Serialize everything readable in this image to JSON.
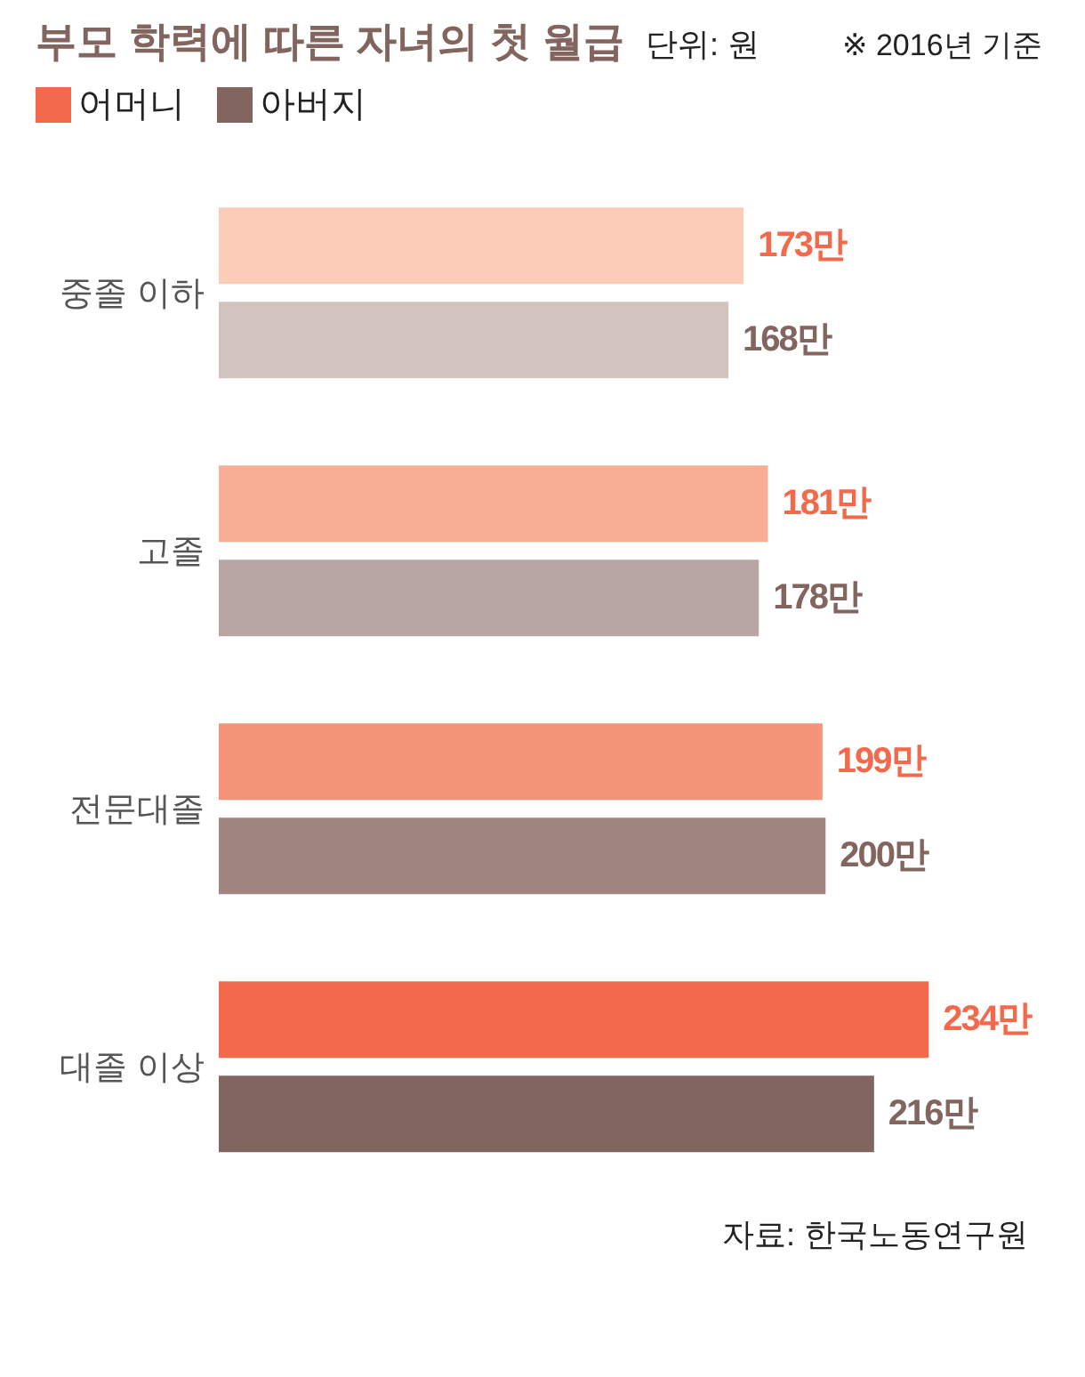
{
  "chart_data": {
    "type": "bar",
    "orientation": "horizontal",
    "title": "부모 학력에 따른 자녀의 첫 월급",
    "subtitle": "단위: 원",
    "annotations": [
      "※ 2016년 기준",
      "자료: 한국노동연구원"
    ],
    "legend": "top left",
    "categories": [
      "중졸 이하",
      "고졸",
      "전문대졸",
      "대졸 이상"
    ],
    "series": [
      {
        "name": "어머니",
        "color": "#f26a4b",
        "colors": [
          "#fbcdb9",
          "#f8ae95",
          "#f49478",
          "#f26a4b"
        ],
        "values": [
          173,
          181,
          199,
          234
        ],
        "value_labels": [
          "173만",
          "181만",
          "199만",
          "234만"
        ]
      },
      {
        "name": "아버지",
        "color": "#836560",
        "colors": [
          "#d2c3bf",
          "#b8a6a2",
          "#a08581",
          "#836560"
        ],
        "values": [
          168,
          178,
          200,
          216
        ],
        "value_labels": [
          "168만",
          "178만",
          "200만",
          "216만"
        ]
      }
    ]
  }
}
